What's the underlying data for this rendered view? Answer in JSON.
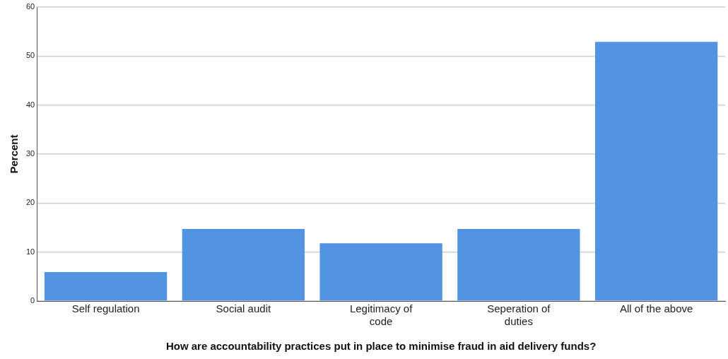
{
  "chart_data": {
    "type": "bar",
    "xlabel": "How are accountability practices put in place to minimise fraud in aid delivery funds?",
    "ylabel": "Percent",
    "categories": [
      "Self regulation",
      "Social audit",
      "Legitimacy of code",
      "Seperation of duties",
      "All of the above"
    ],
    "values": [
      5.9,
      14.7,
      11.8,
      14.7,
      52.9
    ],
    "color": "#5294e2",
    "ylim": [
      0,
      60
    ],
    "yticks": [
      0,
      10,
      20,
      30,
      40,
      50,
      60
    ],
    "grid": "y",
    "legend": false
  }
}
